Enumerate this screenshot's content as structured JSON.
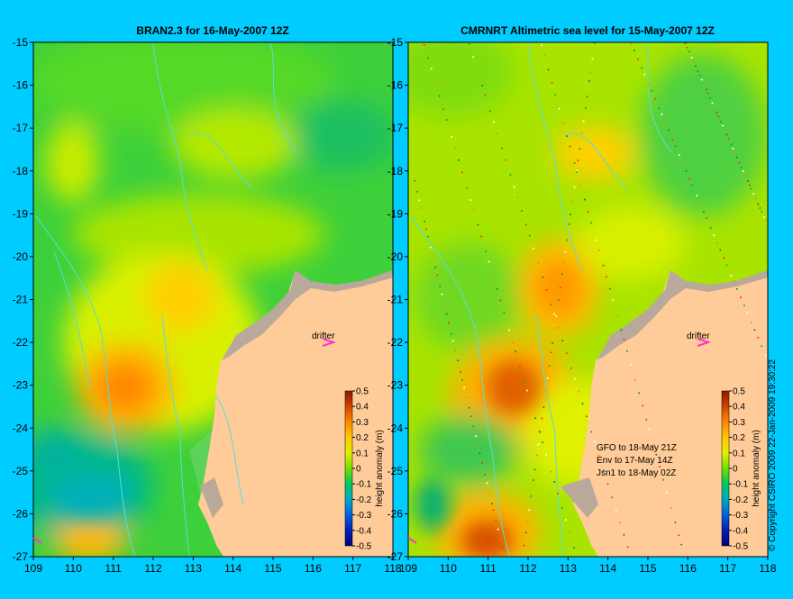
{
  "left_panel": {
    "title": "BRAN2.3 for 16-May-2007 12Z",
    "drifter_label": "drifter"
  },
  "right_panel": {
    "title": "CMRNRT Altimetric sea level  for 15-May-2007 12Z",
    "drifter_label": "drifter",
    "satellite_info": [
      "GFO to 18-May 21Z",
      "Env to 17-May 14Z",
      "Jsn1 to 18-May 02Z"
    ]
  },
  "map": {
    "lon_range": [
      109,
      118
    ],
    "lat_range": [
      -27,
      -15
    ],
    "lon_ticks": [
      "109",
      "110",
      "111",
      "112",
      "113",
      "114",
      "115",
      "116",
      "117",
      "118"
    ],
    "lat_ticks": [
      "-15",
      "-16",
      "-17",
      "-18",
      "-19",
      "-20",
      "-21",
      "-22",
      "-23",
      "-24",
      "-25",
      "-26",
      "-27"
    ],
    "drifter_position": {
      "lon": 116.5,
      "lat": -22.0
    }
  },
  "colorbar": {
    "label": "height anomaly (m)",
    "ticks": [
      "0.5",
      "0.4",
      "0.3",
      "0.2",
      "0.1",
      "0",
      "-0.1",
      "-0.2",
      "-0.3",
      "-0.4",
      "-0.5"
    ],
    "colors": [
      "#8b1a00",
      "#d24400",
      "#ff8800",
      "#ffc800",
      "#e0f000",
      "#70e000",
      "#00c860",
      "#00a8c8",
      "#0060e0",
      "#0020b0",
      "#000080"
    ]
  },
  "colors": {
    "background": "#00ccff",
    "land": "#ffcc99",
    "coast_strip": "#b8a99a",
    "contour_lines": "#55dddd",
    "drifter_arrow": "#ff33cc"
  },
  "copyright": "© Copyright CSIRO 2009   22-Jan-2009 19:30:22"
}
